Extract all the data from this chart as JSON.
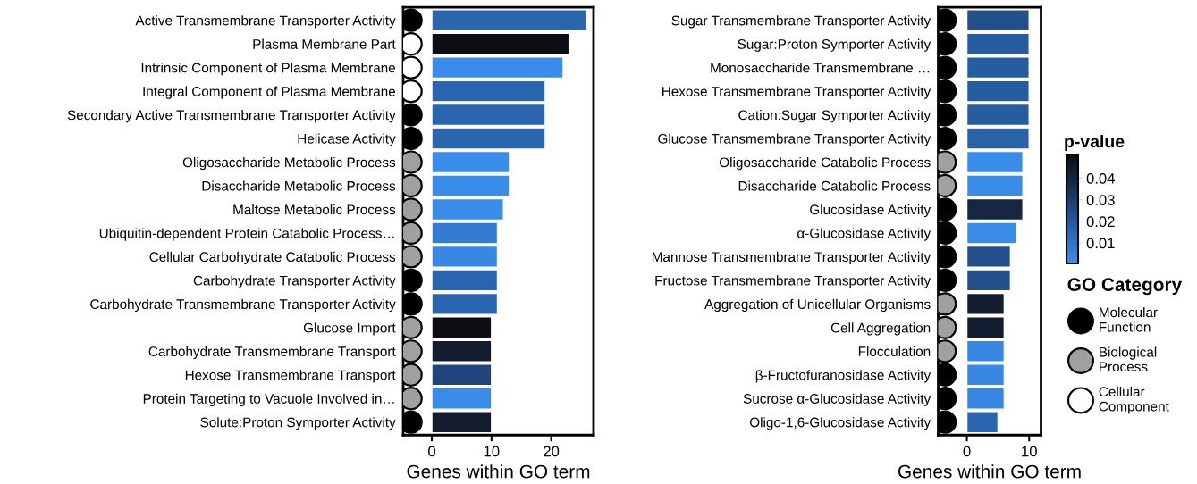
{
  "chart_data": [
    {
      "type": "bar",
      "orientation": "horizontal",
      "xlabel": "Genes within GO term",
      "xlim": [
        -4.8,
        27.1
      ],
      "xticks": [
        0,
        10,
        20
      ],
      "grid": false,
      "categories": [
        "Active Transmembrane Transporter Activity",
        "Plasma Membrane Part",
        "Intrinsic Component of Plasma Membrane",
        "Integral Component of Plasma Membrane",
        "Secondary Active Transmembrane Transporter Activity",
        "Helicase Activity",
        "Oligosaccharide Metabolic Process",
        "Disaccharide Metabolic Process",
        "Maltose Metabolic Process",
        "Ubiquitin-dependent Protein Catabolic Process…",
        "Cellular Carbohydrate Catabolic Process",
        "Carbohydrate Transporter Activity",
        "Carbohydrate Transmembrane Transporter Activity",
        "Glucose Import",
        "Carbohydrate Transmembrane Transport",
        "Hexose Transmembrane Transport",
        "Protein Targeting to Vacuole Involved in…",
        "Solute:Proton Symporter Activity"
      ],
      "values": [
        26,
        23,
        22,
        19,
        19,
        19,
        13,
        13,
        12,
        11,
        11,
        11,
        11,
        10,
        10,
        10,
        10,
        10
      ],
      "colors": [
        "#2a66b0",
        "#0c0e13",
        "#3a8ce9",
        "#2a66b0",
        "#2a66b0",
        "#2a66b0",
        "#3a8ce9",
        "#3a8ce9",
        "#3a8ce9",
        "#347bd2",
        "#3887e3",
        "#2a66b0",
        "#2a66b0",
        "#0c0e13",
        "#141d30",
        "#21457a",
        "#3a8ce9",
        "#141d30"
      ],
      "marker": "circle",
      "series": [
        {
          "type": "scatter",
          "color": "#000000",
          "values": [
            -3.5,
            null,
            null,
            null,
            -3.5,
            -3.5,
            null,
            null,
            null,
            null,
            null,
            -3.5,
            -3.5,
            null,
            null,
            null,
            null,
            -3.5
          ]
        },
        {
          "type": "scatter",
          "color": "#a0a0a0",
          "values": [
            null,
            null,
            null,
            null,
            null,
            null,
            -3.5,
            -3.5,
            -3.5,
            -3.5,
            -3.5,
            null,
            null,
            -3.5,
            -3.5,
            -3.5,
            -3.5,
            null
          ]
        },
        {
          "type": "scatter",
          "color": "#ffffff",
          "values": [
            null,
            -3.5,
            -3.5,
            -3.5,
            null,
            null,
            null,
            null,
            null,
            null,
            null,
            null,
            null,
            null,
            null,
            null,
            null,
            null
          ]
        }
      ]
    },
    {
      "type": "bar",
      "orientation": "horizontal",
      "xlabel": "Genes within GO term",
      "xlim": [
        -4.6,
        11.9
      ],
      "xticks": [
        0,
        10
      ],
      "grid": false,
      "categories": [
        "Sugar Transmembrane Transporter Activity",
        "Sugar:Proton Symporter Activity",
        "Monosaccharide Transmembrane …",
        "Hexose Transmembrane Transporter Activity",
        "Cation:Sugar Symporter Activity",
        "Glucose Transmembrane Transporter Activity",
        "Oligosaccharide Catabolic Process",
        "Disaccharide Catabolic Process",
        "Glucosidase Activity",
        "α-Glucosidase Activity",
        "Mannose Transmembrane Transporter Activity",
        "Fructose Transmembrane Transporter Activity",
        "Aggregation of Unicellular Organisms",
        "Cell Aggregation",
        "Flocculation",
        "β-Fructofuranosidase Activity",
        "Sucrose α-Glucosidase Activity",
        "Oligo-1,6-Glucosidase Activity"
      ],
      "values": [
        10,
        10,
        10,
        10,
        10,
        10,
        9,
        9,
        9,
        8,
        7,
        7,
        6,
        6,
        6,
        6,
        6,
        5
      ],
      "colors": [
        "#234f8a",
        "#265da0",
        "#265da0",
        "#265da0",
        "#265da0",
        "#2863a8",
        "#3a8ce9",
        "#3a8ce9",
        "#182641",
        "#3a8ce9",
        "#234f8a",
        "#234f8a",
        "#141d30",
        "#141d30",
        "#3887e3",
        "#3887e3",
        "#3887e3",
        "#2a66b0"
      ],
      "clabel": "p-value",
      "clim": [
        0.0005,
        0.051
      ],
      "cticks": [
        0.01,
        0.02,
        0.03,
        0.04
      ],
      "legend": "right",
      "legend_title": "GO Category",
      "marker": "circle",
      "series": [
        {
          "type": "scatter",
          "name": "Molecular\nFunction",
          "color": "#000000",
          "values": [
            -3.5,
            -3.5,
            -3.5,
            -3.5,
            -3.5,
            -3.5,
            null,
            null,
            -3.5,
            -3.5,
            -3.5,
            -3.5,
            null,
            null,
            null,
            -3.5,
            -3.5,
            -3.5
          ]
        },
        {
          "type": "scatter",
          "name": "Biological\nProcess",
          "color": "#a0a0a0",
          "values": [
            null,
            null,
            null,
            null,
            null,
            null,
            -3.5,
            -3.5,
            null,
            null,
            null,
            null,
            -3.5,
            -3.5,
            -3.5,
            null,
            null,
            null
          ]
        },
        {
          "type": "scatter",
          "name": "Cellular\nComponent",
          "color": "#ffffff",
          "values": [
            null,
            null,
            null,
            null,
            null,
            null,
            null,
            null,
            null,
            null,
            null,
            null,
            null,
            null,
            null,
            null,
            null,
            null
          ]
        }
      ]
    }
  ]
}
